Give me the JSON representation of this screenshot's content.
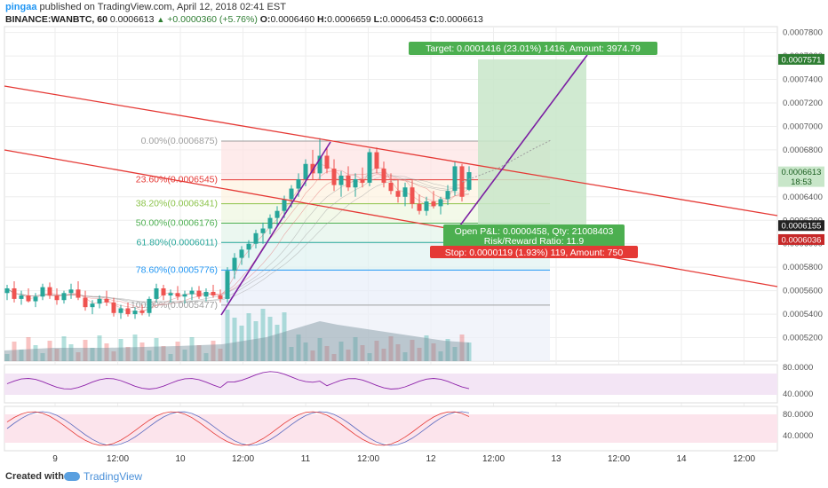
{
  "header": {
    "user": "pingaa",
    "published": "published on TradingView.com, April 12, 2018 02:41 EST",
    "symbol": "BINANCE:WANBTC, 60",
    "last": "0.0006613",
    "change": "+0.0000360 (+5.76%)",
    "ohlc": {
      "o_label": "O:",
      "o": "0.0006460",
      "h_label": "H:",
      "h": "0.0006659",
      "l_label": "L:",
      "l": "0.0006453",
      "c_label": "C:",
      "c": "0.0006613"
    }
  },
  "footer": {
    "created": "Created with",
    "brand": "TradingView"
  },
  "colors": {
    "up": "#26a69a",
    "down": "#ef5350",
    "channel": "#e53935",
    "trend": "#7b1fa2",
    "target_bg": "#4caf50",
    "stop_bg": "#e53935",
    "grid": "#eeeeee"
  },
  "chart_data": {
    "type": "candlestick",
    "y_axis": {
      "min": 0.0005,
      "max": 0.000785,
      "ticks": [
        "0.0007800",
        "0.0007600",
        "0.0007400",
        "0.0007200",
        "0.0007000",
        "0.0006800",
        "0.0006600",
        "0.0006400",
        "0.0006200",
        "0.0006000",
        "0.0005800",
        "0.0005600",
        "0.0005400",
        "0.0005200"
      ]
    },
    "x_axis": {
      "labels": [
        "9",
        "12:00",
        "10",
        "12:00",
        "11",
        "12:00",
        "12",
        "12:00",
        "13",
        "12:00",
        "14",
        "12:00"
      ]
    },
    "price_labels": [
      {
        "text": "0.0007571",
        "value": 0.0007571,
        "color": "#2e7d32",
        "fg": "#fff"
      },
      {
        "text": "0.0006613",
        "value": 0.0006613,
        "color": "#c8e6c9",
        "fg": "#1b5e20"
      },
      {
        "text": "18:53",
        "value": 0.000653,
        "color": "#c8e6c9",
        "fg": "#1b5e20"
      },
      {
        "text": "0.0006155",
        "value": 0.0006155,
        "color": "#222222",
        "fg": "#fff"
      },
      {
        "text": "0.0006036",
        "value": 0.0006036,
        "color": "#c62828",
        "fg": "#fff"
      }
    ],
    "fibonacci": [
      {
        "label": "0.00%(0.0006875)",
        "value": 0.0006875,
        "color": "#9e9e9e"
      },
      {
        "label": "23.60%(0.0006545)",
        "value": 0.0006545,
        "color": "#e53935"
      },
      {
        "label": "38.20%(0.0006341)",
        "value": 0.0006341,
        "color": "#8bc34a"
      },
      {
        "label": "50.00%(0.0006176)",
        "value": 0.0006176,
        "color": "#4caf50"
      },
      {
        "label": "61.80%(0.0006011)",
        "value": 0.0006011,
        "color": "#26a69a"
      },
      {
        "label": "78.60%(0.0005776)",
        "value": 0.0005776,
        "color": "#2196f3"
      },
      {
        "label": "100.00%(0.0005477)",
        "value": 0.0005477,
        "color": "#9e9e9e"
      }
    ],
    "position": {
      "target_label": "Target: 0.0001416 (23.01%) 1416, Amount: 3974.79",
      "pnl_label": "Open P&L: 0.0000458, Qty: 21008403",
      "rr_label": "Risk/Reward Ratio: 11.9",
      "stop_label": "Stop: 0.0000119 (1.93%) 119, Amount: 750",
      "entry": 0.0006155,
      "target": 0.0007571,
      "stop": 0.0006036
    },
    "candles": [
      [
        0.000558,
        0.000565,
        0.000552,
        0.000562
      ],
      [
        0.000562,
        0.000568,
        0.00055,
        0.000553
      ],
      [
        0.000553,
        0.00056,
        0.000548,
        0.000556
      ],
      [
        0.000556,
        0.000562,
        0.00055,
        0.000551
      ],
      [
        0.000551,
        0.000558,
        0.000546,
        0.000555
      ],
      [
        0.000555,
        0.000566,
        0.000552,
        0.000563
      ],
      [
        0.000563,
        0.000567,
        0.000553,
        0.000556
      ],
      [
        0.000556,
        0.000562,
        0.000548,
        0.000552
      ],
      [
        0.000552,
        0.00056,
        0.000549,
        0.000558
      ],
      [
        0.000558,
        0.000566,
        0.000553,
        0.000561
      ],
      [
        0.000561,
        0.000568,
        0.000552,
        0.000554
      ],
      [
        0.000554,
        0.00056,
        0.000543,
        0.000546
      ],
      [
        0.000546,
        0.000552,
        0.00054,
        0.000549
      ],
      [
        0.000549,
        0.000556,
        0.000545,
        0.000553
      ],
      [
        0.000553,
        0.00056,
        0.000547,
        0.00055
      ],
      [
        0.00055,
        0.000554,
        0.000538,
        0.000541
      ],
      [
        0.000541,
        0.000548,
        0.000536,
        0.000545
      ],
      [
        0.000545,
        0.00055,
        0.000538,
        0.00054
      ],
      [
        0.00054,
        0.000546,
        0.000536,
        0.000543
      ],
      [
        0.000543,
        0.000548,
        0.000539,
        0.000541
      ],
      [
        0.000541,
        0.000555,
        0.000538,
        0.000553
      ],
      [
        0.000553,
        0.000566,
        0.00055,
        0.000562
      ],
      [
        0.000562,
        0.000565,
        0.000552,
        0.000556
      ],
      [
        0.000556,
        0.000561,
        0.00055,
        0.000558
      ],
      [
        0.000558,
        0.000564,
        0.000552,
        0.000555
      ],
      [
        0.000555,
        0.00056,
        0.000549,
        0.000557
      ],
      [
        0.000557,
        0.000563,
        0.000552,
        0.00056
      ],
      [
        0.00056,
        0.000564,
        0.000553,
        0.000555
      ],
      [
        0.000555,
        0.000562,
        0.000551,
        0.000559
      ],
      [
        0.000559,
        0.000565,
        0.000554,
        0.000556
      ],
      [
        0.000556,
        0.000561,
        0.00055,
        0.000553
      ],
      [
        0.000553,
        0.00058,
        0.00055,
        0.000577
      ],
      [
        0.000577,
        0.000592,
        0.00057,
        0.000588
      ],
      [
        0.000588,
        0.000598,
        0.000582,
        0.000595
      ],
      [
        0.000595,
        0.000603,
        0.000588,
        0.0006
      ],
      [
        0.0006,
        0.000612,
        0.000596,
        0.000609
      ],
      [
        0.000609,
        0.000618,
        0.0006,
        0.000613
      ],
      [
        0.000613,
        0.000625,
        0.000608,
        0.000622
      ],
      [
        0.000622,
        0.000632,
        0.000615,
        0.000628
      ],
      [
        0.000628,
        0.000641,
        0.000622,
        0.000638
      ],
      [
        0.000638,
        0.00065,
        0.000631,
        0.000647
      ],
      [
        0.000647,
        0.00066,
        0.00064,
        0.000655
      ],
      [
        0.000655,
        0.000672,
        0.000649,
        0.000668
      ],
      [
        0.000668,
        0.00068,
        0.000655,
        0.00066
      ],
      [
        0.00066,
        0.00069,
        0.000655,
        0.000675
      ],
      [
        0.000675,
        0.000682,
        0.00066,
        0.000664
      ],
      [
        0.000664,
        0.000672,
        0.000645,
        0.00065
      ],
      [
        0.00065,
        0.000662,
        0.00064,
        0.000658
      ],
      [
        0.000658,
        0.000666,
        0.000645,
        0.000648
      ],
      [
        0.000648,
        0.00066,
        0.00064,
        0.000655
      ],
      [
        0.000655,
        0.000665,
        0.000648,
        0.000652
      ],
      [
        0.000652,
        0.000681,
        0.000649,
        0.000678
      ],
      [
        0.000678,
        0.000682,
        0.00066,
        0.000664
      ],
      [
        0.000664,
        0.00067,
        0.000648,
        0.000652
      ],
      [
        0.000652,
        0.00066,
        0.000642,
        0.000645
      ],
      [
        0.000645,
        0.000655,
        0.000635,
        0.00064
      ],
      [
        0.00064,
        0.000652,
        0.000632,
        0.000648
      ],
      [
        0.000648,
        0.000654,
        0.00063,
        0.000634
      ],
      [
        0.000634,
        0.000642,
        0.000625,
        0.000628
      ],
      [
        0.000628,
        0.00064,
        0.000624,
        0.000636
      ],
      [
        0.000636,
        0.000645,
        0.00063,
        0.000632
      ],
      [
        0.000632,
        0.00064,
        0.000625,
        0.000638
      ],
      [
        0.000638,
        0.00065,
        0.000633,
        0.000645
      ],
      [
        0.000645,
        0.00067,
        0.000641,
        0.000666
      ],
      [
        0.000666,
        0.000668,
        0.000636,
        0.00064
      ],
      [
        0.000646,
        0.000666,
        0.000645,
        0.000661
      ]
    ]
  }
}
